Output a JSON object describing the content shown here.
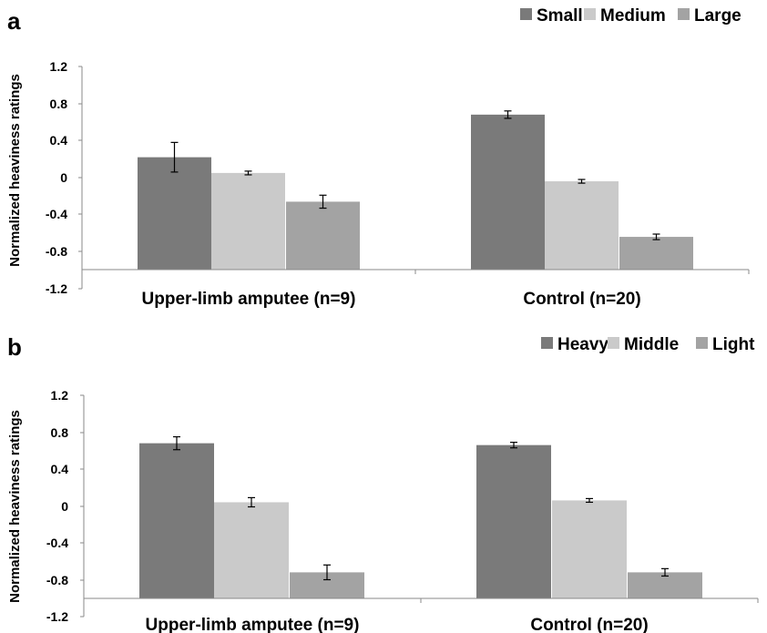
{
  "chart_data": [
    {
      "panel": "a",
      "type": "bar",
      "ylabel": "Normalized heaviness ratings",
      "ylim": [
        -1.2,
        1.2
      ],
      "yticks": [
        "1.2",
        "0.8",
        "0.4",
        "0",
        "-0.4",
        "-0.8",
        "-1.2"
      ],
      "categories": [
        "Upper-limb amputee (n=9)",
        "Control (n=20)"
      ],
      "legend_position": "top-right",
      "series": [
        {
          "name": "Small",
          "color": "#7a7a7a",
          "values": [
            0.22,
            0.68
          ],
          "errors": [
            0.16,
            0.04
          ]
        },
        {
          "name": "Medium",
          "color": "#cacaca",
          "values": [
            0.05,
            -0.04
          ],
          "errors": [
            0.02,
            0.02
          ]
        },
        {
          "name": "Large",
          "color": "#a3a3a3",
          "values": [
            -0.26,
            -0.64
          ],
          "errors": [
            0.07,
            0.03
          ]
        }
      ]
    },
    {
      "panel": "b",
      "type": "bar",
      "ylabel": "Normalized heaviness ratings",
      "ylim": [
        -1.2,
        1.2
      ],
      "yticks": [
        "1.2",
        "0.8",
        "0.4",
        "0",
        "-0.4",
        "-0.8",
        "-1.2"
      ],
      "categories": [
        "Upper-limb amputee (n=9)",
        "Control (n=20)"
      ],
      "legend_position": "top-right",
      "series": [
        {
          "name": "Heavy",
          "color": "#7a7a7a",
          "values": [
            0.68,
            0.66
          ],
          "errors": [
            0.07,
            0.03
          ]
        },
        {
          "name": "Middle",
          "color": "#cacaca",
          "values": [
            0.04,
            0.06
          ],
          "errors": [
            0.05,
            0.02
          ]
        },
        {
          "name": "Light",
          "color": "#a3a3a3",
          "values": [
            -0.72,
            -0.72
          ],
          "errors": [
            0.08,
            0.04
          ]
        }
      ]
    }
  ]
}
